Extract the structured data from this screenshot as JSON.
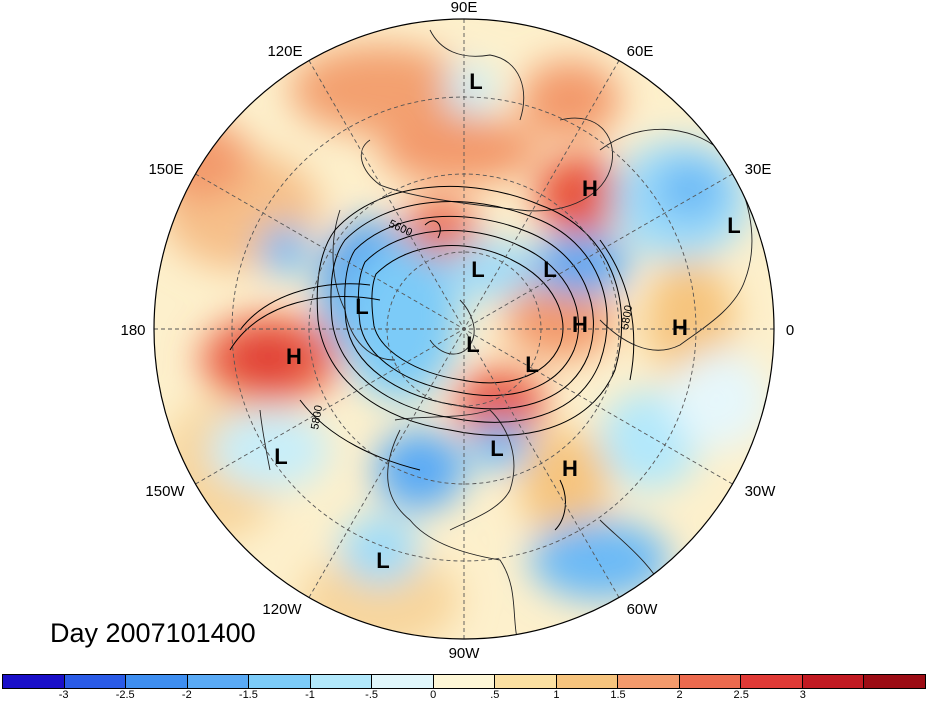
{
  "title": "Day 2007101400",
  "lon_labels": {
    "n": "90E",
    "nne": "60E",
    "ne": "30E",
    "e": "0",
    "se": "30W",
    "sse": "60W",
    "s": "90W",
    "ssw": "120W",
    "sw": "150W",
    "w": "180",
    "nw": "150E",
    "nnw": "120E"
  },
  "contour_labels": [
    "5600",
    "5800",
    "5800"
  ],
  "centers": [
    {
      "type": "L"
    },
    {
      "type": "H"
    },
    {
      "type": "L"
    },
    {
      "type": "L"
    },
    {
      "type": "L"
    },
    {
      "type": "L"
    },
    {
      "type": "H"
    },
    {
      "type": "H"
    },
    {
      "type": "L"
    },
    {
      "type": "L"
    },
    {
      "type": "H"
    },
    {
      "type": "L"
    },
    {
      "type": "L"
    },
    {
      "type": "H"
    },
    {
      "type": "L"
    }
  ],
  "colorbar": {
    "colors": [
      "#1a0fc8",
      "#2a5be6",
      "#3e8ef0",
      "#5aaaf5",
      "#7ccbf8",
      "#b2e8fb",
      "#e0f6fb",
      "#fdf6d6",
      "#fbe0a2",
      "#f6c47e",
      "#f39a6c",
      "#ec6a4e",
      "#e03a36",
      "#c21a22",
      "#9c0c14"
    ],
    "ticks": [
      "-3",
      "-2.5",
      "-2",
      "-1.5",
      "-1",
      "-.5",
      "0",
      ".5",
      "1",
      "1.5",
      "2",
      "2.5",
      "3"
    ]
  }
}
